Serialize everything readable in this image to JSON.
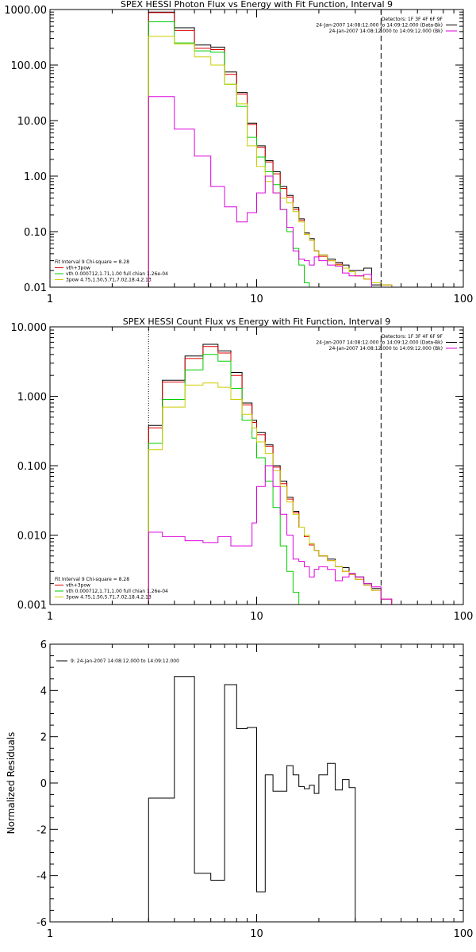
{
  "chart_data": [
    {
      "type": "line",
      "title": "SPEX HESSI Photon Flux vs Energy with Fit Function, Interval 9",
      "xlabel": "",
      "ylabel": "",
      "xscale": "log",
      "yscale": "log",
      "xlim": [
        1,
        100
      ],
      "ylim": [
        0.01,
        1000
      ],
      "xticks": [
        "1",
        "10",
        "100"
      ],
      "yticks": [
        "0.01",
        "0.10",
        "1.00",
        "10.00",
        "100.00",
        "1000.00"
      ],
      "vlines": [
        {
          "x": 3,
          "style": "dotted"
        },
        {
          "x": 40,
          "style": "dashed"
        }
      ],
      "info_lines": [
        {
          "text": "Detectors: 1F 3F 4F 6F 9F",
          "color": "#000000"
        },
        {
          "text": "24-Jan-2007 14:08:12.000 to 14:09:12.000 (Data-Bk)",
          "color": "#000000",
          "legend_color": "#000000"
        },
        {
          "text": "24-Jan-2007 14:08:12.000 to 14:09:12.000 (Bk)",
          "color": "#000000",
          "legend_color": "#dd00dd"
        }
      ],
      "fit_legend": [
        {
          "text": "Fit Interval 9   Chi-square = 8.28",
          "color": "#000000"
        },
        {
          "text": "vth+3pow",
          "color": "#000000",
          "legend_color": "#dd0000"
        },
        {
          "text": "vth 0.000712,1.71,1.00  full chian 1.26e-04",
          "color": "#000000",
          "legend_color": "#00cc00"
        },
        {
          "text": "3pow 4.75,1.50,5.71,7.02,18.4,2.13",
          "color": "#000000",
          "legend_color": "#cccc00"
        }
      ],
      "edges": [
        3.0,
        3.5,
        4.0,
        4.5,
        5.0,
        5.5,
        6.0,
        6.5,
        7.0,
        7.5,
        8.0,
        8.5,
        9.0,
        9.5,
        10.0,
        11.0,
        12.0,
        13.0,
        14.0,
        15.0,
        16.0,
        17.0,
        18.0,
        19.0,
        20.0,
        22.0,
        24.0,
        26.0,
        28.0,
        30.0,
        33.0,
        36.0,
        40.0,
        45.0,
        50.0
      ],
      "series": [
        {
          "color": "#000000",
          "values": [
            900,
            900,
            470,
            470,
            230,
            230,
            210,
            210,
            75,
            75,
            32,
            32,
            9.0,
            9.0,
            3.5,
            1.9,
            1.2,
            0.65,
            0.45,
            0.27,
            0.17,
            0.095,
            0.075,
            0.045,
            0.038,
            0.032,
            0.028,
            0.025,
            0.02,
            0.02,
            0.022,
            0.011,
            0.011,
            null
          ]
        },
        {
          "color": "#dd0000",
          "values": [
            880,
            880,
            420,
            420,
            200,
            200,
            190,
            190,
            68,
            68,
            30,
            30,
            8.5,
            8.5,
            3.3,
            1.8,
            1.1,
            0.6,
            0.42,
            0.25,
            0.16,
            0.09,
            0.07,
            0.045,
            0.036,
            0.03,
            0.026,
            0.022,
            0.019,
            0.016,
            0.014,
            0.012,
            0.011,
            null
          ]
        },
        {
          "color": "#00cc00",
          "values": [
            600,
            600,
            250,
            250,
            180,
            180,
            170,
            170,
            45,
            45,
            18,
            18,
            5.0,
            5.0,
            2.2,
            1.2,
            0.7,
            0.25,
            0.1,
            0.05,
            0.025,
            0.012,
            0.005,
            null,
            null,
            null,
            null,
            null,
            null,
            null,
            null,
            null,
            null,
            null
          ]
        },
        {
          "color": "#cccc00",
          "values": [
            330,
            330,
            240,
            240,
            140,
            140,
            100,
            100,
            45,
            45,
            20,
            20,
            3.5,
            3.5,
            1.5,
            0.8,
            0.5,
            0.4,
            0.33,
            0.23,
            0.15,
            0.09,
            0.07,
            0.045,
            0.038,
            0.03,
            0.025,
            0.022,
            0.019,
            0.016,
            0.014,
            0.012,
            0.011,
            0.01
          ]
        },
        {
          "color": "#dd00dd",
          "values": [
            27,
            27,
            7,
            7,
            2.3,
            2.3,
            0.65,
            0.65,
            0.28,
            0.28,
            0.15,
            0.15,
            0.22,
            0.22,
            0.5,
            1.0,
            0.5,
            0.25,
            0.12,
            0.045,
            0.032,
            0.03,
            0.025,
            0.035,
            0.03,
            0.025,
            0.024,
            0.018,
            0.016,
            0.016,
            0.017,
            null,
            null,
            null
          ]
        }
      ]
    },
    {
      "type": "line",
      "title": "SPEX HESSI Count Flux vs Energy with Fit Function, Interval 9",
      "xlabel": "",
      "ylabel": "",
      "xscale": "log",
      "yscale": "log",
      "xlim": [
        1,
        100
      ],
      "ylim": [
        0.001,
        10
      ],
      "xticks": [
        "1",
        "10",
        "100"
      ],
      "yticks": [
        "0.001",
        "0.010",
        "0.100",
        "1.000",
        "10.000"
      ],
      "vlines": [
        {
          "x": 3,
          "style": "dotted"
        },
        {
          "x": 40,
          "style": "dashed"
        }
      ],
      "info_lines": [
        {
          "text": "Detectors: 1F 3F 4F 6F 9F",
          "color": "#000000"
        },
        {
          "text": "24-Jan-2007 14:08:12.000 to 14:09:12.000 (Data-Bk)",
          "color": "#000000",
          "legend_color": "#000000"
        },
        {
          "text": "24-Jan-2007 14:08:12.000 to 14:09:12.000 (Bk)",
          "color": "#000000",
          "legend_color": "#dd00dd"
        }
      ],
      "fit_legend": [
        {
          "text": "Fit Interval 9   Chi-square = 8.28",
          "color": "#000000"
        },
        {
          "text": "vth+3pow",
          "color": "#000000",
          "legend_color": "#dd0000"
        },
        {
          "text": "vth 0.000712,1.71,1.00  full chian 1.26e-04",
          "color": "#000000",
          "legend_color": "#00cc00"
        },
        {
          "text": "3pow 4.75,1.50,5.71,7.02,18.4,2.13",
          "color": "#000000",
          "legend_color": "#cccc00"
        }
      ],
      "edges": [
        3.0,
        3.5,
        4.0,
        4.5,
        5.0,
        5.5,
        6.0,
        6.5,
        7.0,
        7.5,
        8.0,
        8.5,
        9.0,
        9.5,
        10.0,
        11.0,
        12.0,
        13.0,
        14.0,
        15.0,
        16.0,
        17.0,
        18.0,
        19.0,
        20.0,
        22.0,
        24.0,
        26.0,
        28.0,
        30.0,
        33.0,
        36.0,
        40.0,
        45.0,
        50.0
      ],
      "series": [
        {
          "color": "#000000",
          "values": [
            0.38,
            1.7,
            1.7,
            3.8,
            3.8,
            5.6,
            5.6,
            4.5,
            4.5,
            2.2,
            2.2,
            0.8,
            0.8,
            0.45,
            0.3,
            0.2,
            0.1,
            0.06,
            0.035,
            0.022,
            0.013,
            0.01,
            0.0075,
            0.006,
            0.005,
            0.0045,
            0.0035,
            0.0034,
            0.0028,
            0.0025,
            0.002,
            0.0017,
            0.0012,
            null
          ]
        },
        {
          "color": "#dd0000",
          "values": [
            0.35,
            1.6,
            1.6,
            3.5,
            3.5,
            5.2,
            5.2,
            4.2,
            4.2,
            2.0,
            2.0,
            0.75,
            0.75,
            0.42,
            0.28,
            0.19,
            0.095,
            0.055,
            0.033,
            0.021,
            0.013,
            0.0095,
            0.0072,
            0.006,
            0.005,
            0.0043,
            0.0035,
            0.003,
            0.0027,
            0.0023,
            0.0019,
            0.0016,
            0.0012,
            null
          ]
        },
        {
          "color": "#00cc00",
          "values": [
            0.21,
            0.9,
            0.9,
            2.4,
            2.4,
            4.0,
            4.0,
            3.2,
            3.2,
            1.3,
            1.3,
            0.45,
            0.45,
            0.25,
            0.13,
            0.06,
            0.025,
            0.007,
            0.003,
            0.0015,
            0.001,
            null,
            null,
            null,
            null,
            null,
            null,
            null,
            null,
            null,
            null,
            null,
            null,
            null
          ]
        },
        {
          "color": "#cccc00",
          "values": [
            0.17,
            0.7,
            0.7,
            1.45,
            1.45,
            1.55,
            1.55,
            1.35,
            1.35,
            0.9,
            0.9,
            0.55,
            0.55,
            0.35,
            0.22,
            0.15,
            0.085,
            0.05,
            0.03,
            0.02,
            0.013,
            0.01,
            0.0075,
            0.006,
            0.005,
            0.0043,
            0.0035,
            0.003,
            0.0027,
            0.0023,
            0.0019,
            0.0016,
            0.0012,
            0.0008
          ]
        },
        {
          "color": "#dd00dd",
          "values": [
            0.011,
            0.0095,
            0.0095,
            0.0083,
            0.0083,
            0.0078,
            0.0078,
            0.0095,
            0.0095,
            0.007,
            0.007,
            0.007,
            0.007,
            0.015,
            0.05,
            0.1,
            0.05,
            0.02,
            0.01,
            0.0045,
            0.0042,
            0.0035,
            0.0025,
            0.0032,
            0.0035,
            0.0032,
            0.0022,
            0.0025,
            0.0028,
            0.0025,
            0.002,
            0.0018,
            0.0012,
            null
          ]
        }
      ]
    },
    {
      "type": "line",
      "title": "",
      "xlabel": "",
      "ylabel": "Normalized Residuals",
      "xscale": "log",
      "yscale": "linear",
      "xlim": [
        1,
        100
      ],
      "ylim": [
        -6,
        6
      ],
      "xticks": [
        "1",
        "10",
        "100"
      ],
      "yticks": [
        "-6",
        "-4",
        "-2",
        "0",
        "2",
        "4",
        "6"
      ],
      "info_lines": [
        {
          "text": "9: 24-Jan-2007 14:08:12.000 to 14:09:12.000",
          "color": "#000000",
          "legend_color": "#000000"
        }
      ],
      "edges": [
        3.0,
        3.5,
        4.0,
        4.5,
        5.0,
        5.5,
        6.0,
        6.5,
        7.0,
        7.5,
        8.0,
        8.5,
        9.0,
        9.5,
        10.0,
        11.0,
        12.0,
        13.0,
        14.0,
        15.0,
        16.0,
        17.0,
        18.0,
        19.0,
        20.0,
        22.0,
        24.0,
        26.0,
        28.0,
        30.0,
        33.0,
        36.0,
        40.0,
        45.0,
        50.0
      ],
      "series": [
        {
          "color": "#000000",
          "values": [
            -0.65,
            -0.65,
            4.6,
            4.6,
            -3.9,
            -3.9,
            -4.2,
            -4.2,
            4.25,
            4.25,
            2.35,
            2.35,
            2.4,
            2.4,
            -4.7,
            0.35,
            -0.35,
            -0.35,
            0.75,
            0.35,
            -0.15,
            -0.25,
            -0.1,
            -0.45,
            0.35,
            0.85,
            -0.3,
            0.15,
            -0.2,
            null,
            null,
            null,
            null,
            null
          ]
        }
      ]
    }
  ]
}
